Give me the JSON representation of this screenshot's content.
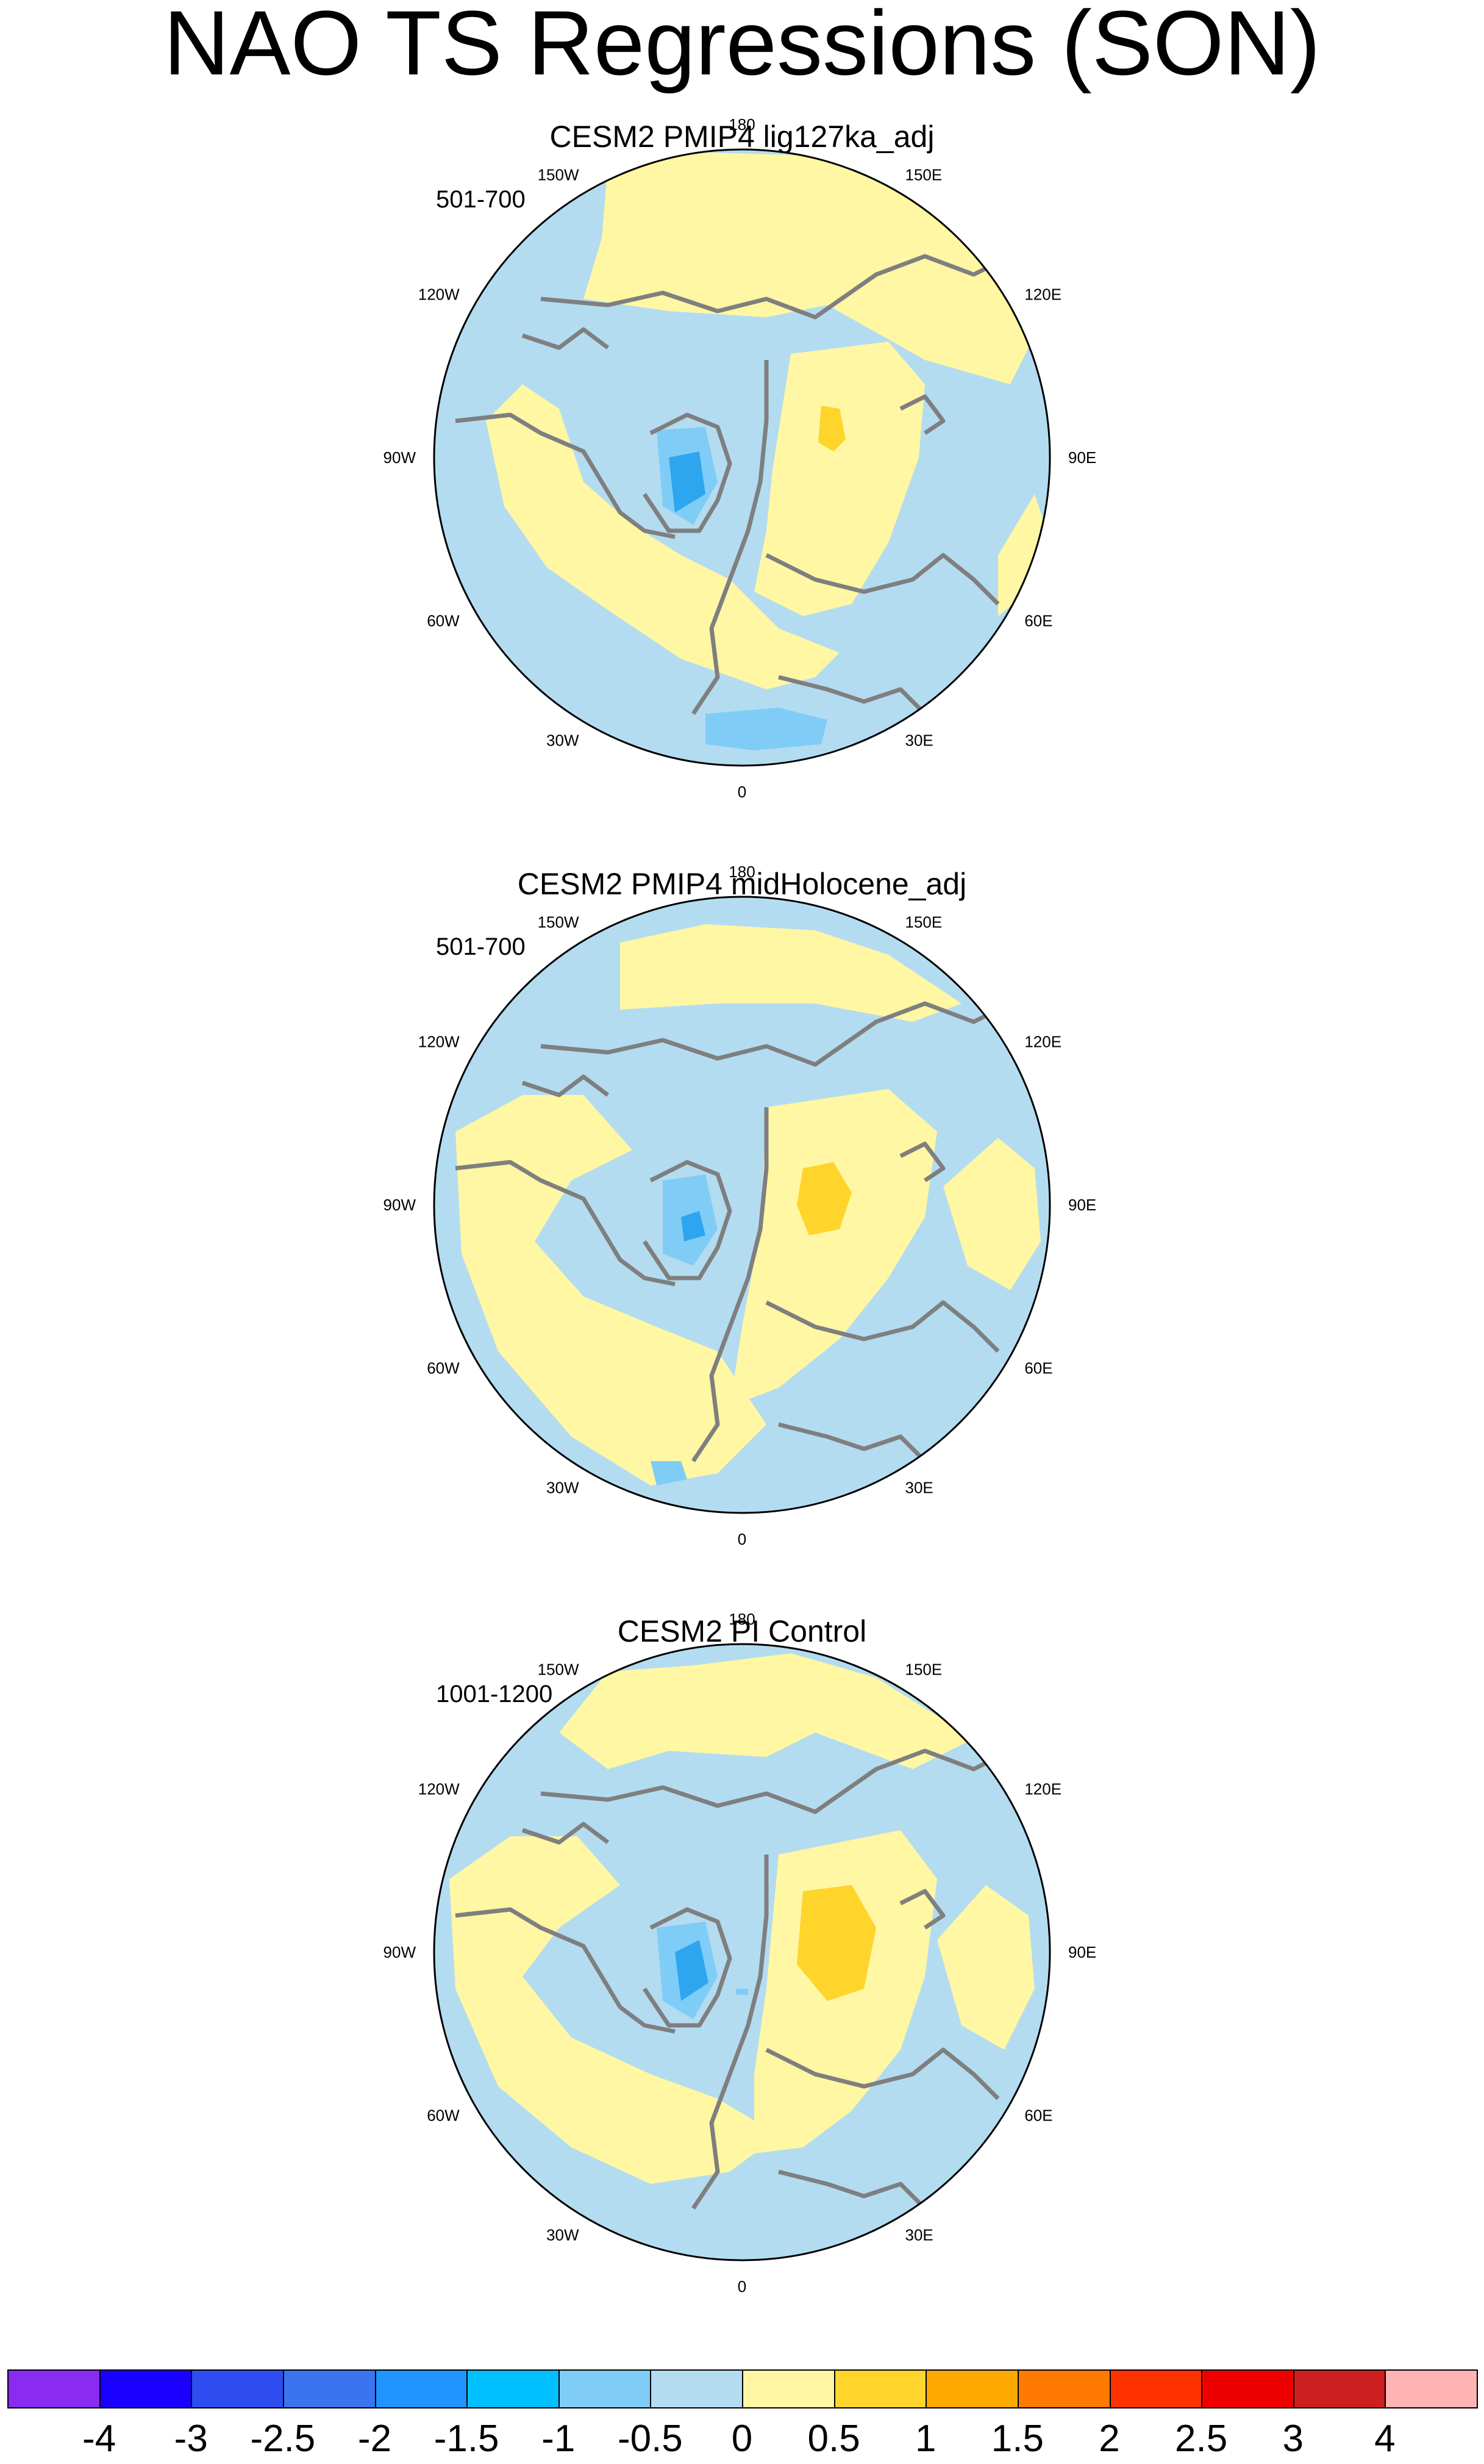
{
  "title": "NAO TS Regressions (SON)",
  "colors": {
    "land_outline": "#7f7f7f",
    "neg_light": "#b3dcf1",
    "neg_mid": "#7fcdf7",
    "neg_dark": "#2ea6ef",
    "pos_light": "#fff7a3",
    "pos_mid": "#ffd42b"
  },
  "longitude_labels": [
    "180",
    "150E",
    "120E",
    "90E",
    "60E",
    "30E",
    "0",
    "30W",
    "60W",
    "90W",
    "120W",
    "150W"
  ],
  "panels": [
    {
      "title": "CESM2 PMIP4 lig127ka_adj",
      "period": "501-700"
    },
    {
      "title": "CESM2 PMIP4 midHolocene_adj",
      "period": "501-700"
    },
    {
      "title": "CESM2 PI Control",
      "period": "1001-1200"
    }
  ],
  "colorbar": {
    "colors": [
      "#8a2bf0",
      "#1a00ff",
      "#2e4df0",
      "#3a74f0",
      "#2095ff",
      "#00c0ff",
      "#7fcdf7",
      "#b3dcf1",
      "#fff7a3",
      "#ffd42b",
      "#ffaa00",
      "#ff7a00",
      "#ff3300",
      "#ee0000",
      "#cc1f1f",
      "#ffb4b4"
    ],
    "labels": [
      "-4",
      "-3",
      "-2.5",
      "-2",
      "-1.5",
      "-1",
      "-0.5",
      "0",
      "0.5",
      "1",
      "1.5",
      "2",
      "2.5",
      "3",
      "4"
    ]
  }
}
